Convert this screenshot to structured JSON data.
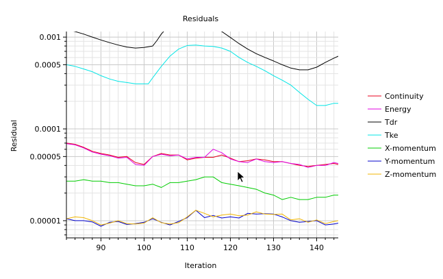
{
  "chart_data": {
    "type": "line",
    "title": "Residuals",
    "xlabel": "Iteration",
    "ylabel": "Residual",
    "x_scale": "linear",
    "y_scale": "log",
    "xlim": [
      82,
      145
    ],
    "ylim": [
      6.5e-06,
      0.00115
    ],
    "x_ticks": [
      90,
      100,
      110,
      120,
      130,
      140
    ],
    "x_tick_labels": [
      "90",
      "100",
      "110",
      "120",
      "130",
      "140"
    ],
    "y_ticks": [
      1e-05,
      5e-05,
      0.0001,
      0.0005,
      0.001
    ],
    "y_tick_labels": [
      "0.00001",
      "0.00005",
      "0.0001",
      "0.0005",
      "0.001"
    ],
    "grid": true,
    "legend_position": "right",
    "series": [
      {
        "name": "Continuity",
        "color": "#e8001c",
        "x": [
          82,
          84,
          86,
          88,
          90,
          92,
          94,
          96,
          98,
          100,
          102,
          104,
          106,
          108,
          110,
          112,
          114,
          116,
          118,
          120,
          122,
          124,
          126,
          128,
          130,
          132,
          134,
          136,
          138,
          140,
          142,
          144,
          145
        ],
        "y": [
          7e-05,
          6.8e-05,
          6.3e-05,
          5.7e-05,
          5.4e-05,
          5.2e-05,
          4.9e-05,
          5e-05,
          4.3e-05,
          4.1e-05,
          5e-05,
          5.4e-05,
          5.2e-05,
          5.2e-05,
          4.6e-05,
          4.8e-05,
          4.9e-05,
          4.9e-05,
          5.2e-05,
          4.8e-05,
          4.4e-05,
          4.5e-05,
          4.7e-05,
          4.6e-05,
          4.4e-05,
          4.4e-05,
          4.2e-05,
          4e-05,
          3.9e-05,
          4e-05,
          4.1e-05,
          4.2e-05,
          4.1e-05
        ]
      },
      {
        "name": "Energy",
        "color": "#e000e0",
        "x": [
          82,
          84,
          86,
          88,
          90,
          92,
          94,
          96,
          98,
          100,
          102,
          104,
          106,
          108,
          110,
          112,
          114,
          116,
          118,
          120,
          122,
          124,
          126,
          128,
          130,
          132,
          134,
          136,
          138,
          140,
          142,
          144,
          145
        ],
        "y": [
          6.9e-05,
          6.7e-05,
          6.2e-05,
          5.6e-05,
          5.3e-05,
          5.1e-05,
          4.8e-05,
          4.9e-05,
          4.1e-05,
          4e-05,
          5e-05,
          5.3e-05,
          5.1e-05,
          5.2e-05,
          4.7e-05,
          4.9e-05,
          4.9e-05,
          6e-05,
          5.5e-05,
          4.7e-05,
          4.4e-05,
          4.3e-05,
          4.7e-05,
          4.4e-05,
          4.3e-05,
          4.4e-05,
          4.2e-05,
          4.1e-05,
          3.8e-05,
          4e-05,
          4e-05,
          4.3e-05,
          4.2e-05
        ]
      },
      {
        "name": "Tdr",
        "color": "#000000",
        "x": [
          82,
          84,
          86,
          88,
          90,
          92,
          94,
          96,
          98,
          100,
          102,
          103,
          104,
          105
        ],
        "y": [
          0.0012,
          0.00115,
          0.00108,
          0.001,
          0.00093,
          0.00087,
          0.00082,
          0.00078,
          0.00076,
          0.00077,
          0.0008,
          0.00092,
          0.00108,
          0.00122
        ],
        "x2": [
          117,
          118,
          120,
          122,
          124,
          126,
          128,
          130,
          132,
          134,
          136,
          138,
          140,
          142,
          144,
          145
        ],
        "y2": [
          0.00122,
          0.00115,
          0.00099,
          0.00085,
          0.00074,
          0.00066,
          0.0006,
          0.00055,
          0.0005,
          0.00046,
          0.00044,
          0.00044,
          0.00047,
          0.00053,
          0.00059,
          0.00062
        ]
      },
      {
        "name": "Tke",
        "color": "#00e5e5",
        "x": [
          82,
          84,
          86,
          88,
          90,
          92,
          94,
          96,
          98,
          100,
          101,
          102,
          104,
          106,
          108,
          110,
          112,
          114,
          116,
          118,
          120,
          122,
          124,
          126,
          128,
          130,
          132,
          134,
          136,
          138,
          140,
          142,
          144,
          145
        ],
        "y": [
          0.0005,
          0.00048,
          0.00045,
          0.00042,
          0.00038,
          0.00035,
          0.00033,
          0.00032,
          0.00031,
          0.00031,
          0.00031,
          0.00036,
          0.00048,
          0.00062,
          0.00074,
          0.00081,
          0.00082,
          0.0008,
          0.00079,
          0.00076,
          0.0007,
          0.0006,
          0.00053,
          0.00048,
          0.00043,
          0.00038,
          0.00034,
          0.0003,
          0.00025,
          0.00021,
          0.00018,
          0.00018,
          0.00019,
          0.00019
        ]
      },
      {
        "name": "X-momentum",
        "color": "#00cc00",
        "x": [
          82,
          84,
          86,
          88,
          90,
          92,
          94,
          96,
          98,
          100,
          102,
          104,
          106,
          108,
          110,
          112,
          114,
          116,
          118,
          120,
          122,
          124,
          126,
          128,
          130,
          132,
          134,
          136,
          138,
          140,
          142,
          144,
          145
        ],
        "y": [
          2.7e-05,
          2.7e-05,
          2.8e-05,
          2.7e-05,
          2.7e-05,
          2.6e-05,
          2.6e-05,
          2.5e-05,
          2.4e-05,
          2.4e-05,
          2.5e-05,
          2.3e-05,
          2.6e-05,
          2.6e-05,
          2.7e-05,
          2.8e-05,
          3e-05,
          3e-05,
          2.6e-05,
          2.5e-05,
          2.4e-05,
          2.3e-05,
          2.2e-05,
          2e-05,
          1.9e-05,
          1.7e-05,
          1.8e-05,
          1.7e-05,
          1.7e-05,
          1.8e-05,
          1.8e-05,
          1.9e-05,
          1.9e-05
        ]
      },
      {
        "name": "Y-momentum",
        "color": "#0000cc",
        "x": [
          82,
          84,
          86,
          88,
          90,
          92,
          94,
          96,
          98,
          100,
          102,
          104,
          106,
          108,
          110,
          112,
          114,
          116,
          118,
          120,
          122,
          124,
          126,
          128,
          130,
          132,
          134,
          136,
          138,
          140,
          142,
          144,
          145
        ],
        "y": [
          1.05e-05,
          1e-05,
          1e-05,
          9.7e-06,
          8.7e-06,
          9.6e-06,
          9.8e-06,
          9.1e-06,
          9.3e-06,
          9.6e-06,
          1.05e-05,
          9.6e-06,
          9e-06,
          9.8e-06,
          1.08e-05,
          1.3e-05,
          1.08e-05,
          1.14e-05,
          1.07e-05,
          1.1e-05,
          1.07e-05,
          1.2e-05,
          1.18e-05,
          1.19e-05,
          1.18e-05,
          1.1e-05,
          1e-05,
          9.6e-06,
          9.8e-06,
          1e-05,
          9e-06,
          9.2e-06,
          9.4e-06
        ]
      },
      {
        "name": "Z-momentum",
        "color": "#f0b400",
        "x": [
          82,
          84,
          86,
          88,
          90,
          92,
          94,
          96,
          98,
          100,
          102,
          104,
          106,
          108,
          110,
          112,
          114,
          116,
          118,
          120,
          122,
          124,
          126,
          128,
          130,
          132,
          134,
          136,
          138,
          140,
          142,
          144,
          145
        ],
        "y": [
          1.05e-05,
          1.1e-05,
          1.08e-05,
          1e-05,
          9e-06,
          9.4e-06,
          1e-05,
          9.3e-06,
          9.2e-06,
          9.4e-06,
          1.08e-05,
          9.5e-06,
          9.2e-06,
          9.5e-06,
          1.1e-05,
          1.3e-05,
          1.2e-05,
          1.1e-05,
          1.15e-05,
          1.18e-05,
          1.13e-05,
          1.15e-05,
          1.25e-05,
          1.18e-05,
          1.17e-05,
          1.18e-05,
          1.02e-05,
          1.05e-05,
          9.6e-06,
          1.02e-05,
          9.3e-06,
          9.8e-06,
          1e-05
        ]
      }
    ]
  }
}
